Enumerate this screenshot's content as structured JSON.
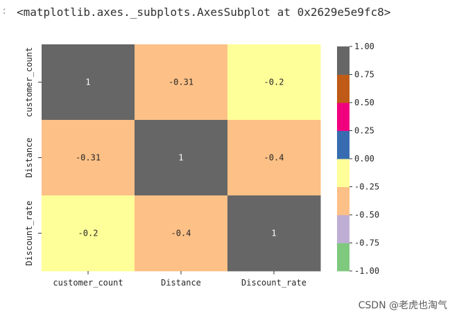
{
  "output": {
    "gutter": ":",
    "text": "<matplotlib.axes._subplots.AxesSubplot at 0x2629e5e9fc8>"
  },
  "watermark": "CSDN @老虎也淘气",
  "chart_data": {
    "type": "heatmap",
    "title": "",
    "row_labels": [
      "customer_count",
      "Distance",
      "Discount_rate"
    ],
    "col_labels": [
      "customer_count",
      "Distance",
      "Discount_rate"
    ],
    "values": [
      [
        1,
        -0.31,
        -0.2
      ],
      [
        -0.31,
        1,
        -0.4
      ],
      [
        -0.2,
        -0.4,
        1
      ]
    ],
    "annotations": [
      [
        "1",
        "-0.31",
        "-0.2"
      ],
      [
        "-0.31",
        "1",
        "-0.4"
      ],
      [
        "-0.2",
        "-0.4",
        "1"
      ]
    ],
    "vmin": -1.0,
    "vmax": 1.0,
    "colormap_name": "Accent",
    "colormap_bins": [
      {
        "from": -1.0,
        "to": -0.75,
        "color": "#7fc97f"
      },
      {
        "from": -0.75,
        "to": -0.5,
        "color": "#beaed4"
      },
      {
        "from": -0.5,
        "to": -0.25,
        "color": "#fdc086"
      },
      {
        "from": -0.25,
        "to": 0.0,
        "color": "#ffff99"
      },
      {
        "from": 0.0,
        "to": 0.25,
        "color": "#386cb0"
      },
      {
        "from": 0.25,
        "to": 0.5,
        "color": "#f0027f"
      },
      {
        "from": 0.5,
        "to": 0.75,
        "color": "#bf5b17"
      },
      {
        "from": 0.75,
        "to": 1.0,
        "color": "#666666"
      }
    ],
    "colorbar_ticks": [
      1.0,
      0.75,
      0.5,
      0.25,
      0.0,
      -0.25,
      -0.5,
      -0.75,
      -1.0
    ],
    "colorbar_tick_labels": [
      "1.00",
      "0.75",
      "0.50",
      "0.25",
      "0.00",
      "-0.25",
      "-0.50",
      "-0.75",
      "-1.00"
    ]
  }
}
